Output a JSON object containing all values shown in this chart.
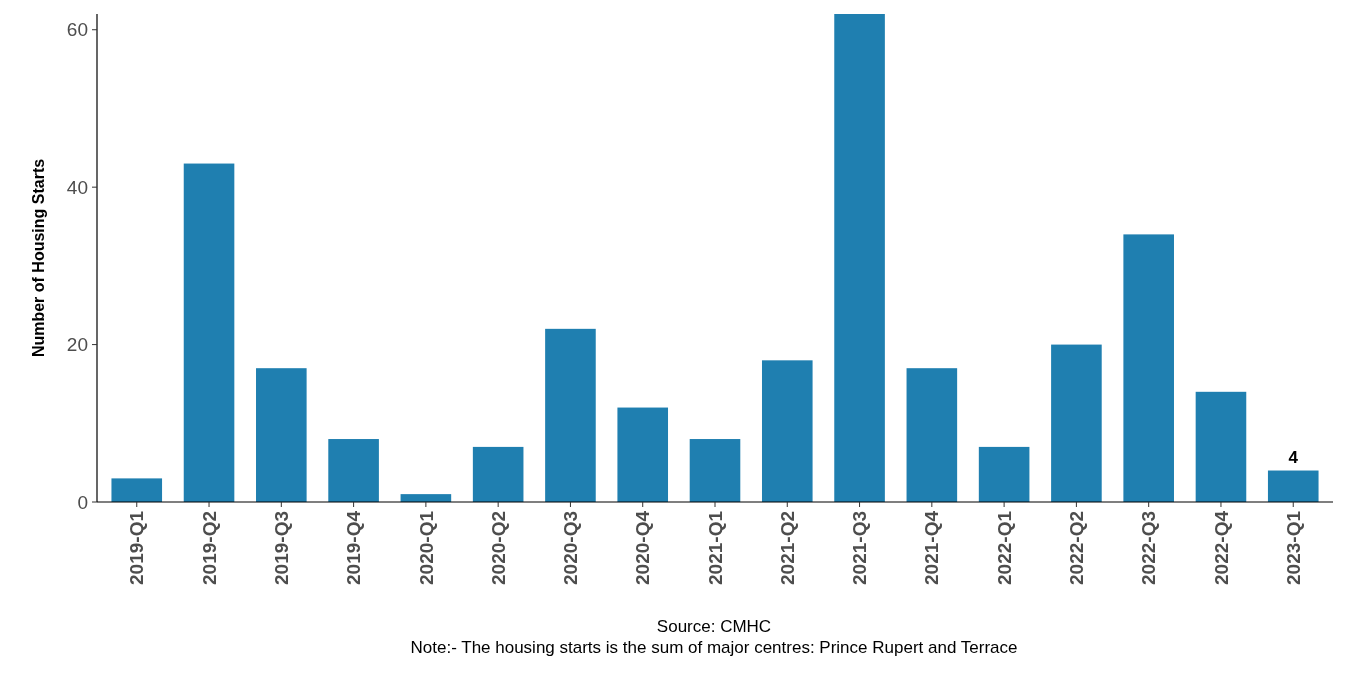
{
  "chart_data": {
    "type": "bar",
    "ylabel": "Number of Housing Starts",
    "categories": [
      "2019-Q1",
      "2019-Q2",
      "2019-Q3",
      "2019-Q4",
      "2020-Q1",
      "2020-Q2",
      "2020-Q3",
      "2020-Q4",
      "2021-Q1",
      "2021-Q2",
      "2021-Q3",
      "2021-Q4",
      "2022-Q1",
      "2022-Q2",
      "2022-Q3",
      "2022-Q4",
      "2023-Q1"
    ],
    "values": [
      3,
      43,
      17,
      8,
      1,
      7,
      22,
      12,
      8,
      18,
      62,
      17,
      7,
      20,
      34,
      14,
      4
    ],
    "value_labels": [
      null,
      null,
      null,
      null,
      null,
      null,
      null,
      null,
      null,
      null,
      null,
      null,
      null,
      null,
      null,
      null,
      "4"
    ],
    "color": "#1f7fb0",
    "ylim": [
      0,
      62
    ],
    "yticks": [
      0,
      20,
      40,
      60
    ],
    "grid": false,
    "annotations": [
      "Source: CMHC",
      "Note:- The housing starts is the sum of major centres: Prince Rupert and Terrace"
    ]
  }
}
